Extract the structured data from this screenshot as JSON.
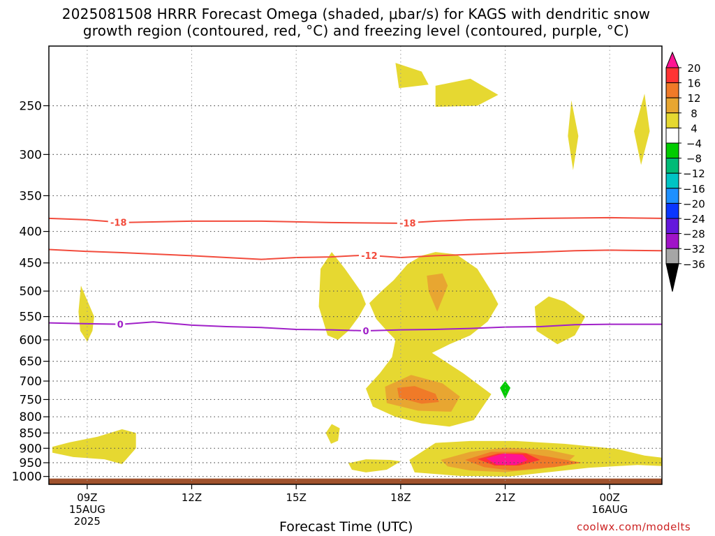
{
  "title_line1": "2025081508 HRRR Forecast Omega (shaded, μbar/s) for KAGS with dendritic snow",
  "title_line2": "growth region (contoured, red, °C) and freezing level (contoured, purple, °C)",
  "xlabel": "Forecast Time (UTC)",
  "credit": "coolwx.com/modelts",
  "chart_data": {
    "type": "heatmap",
    "title": "2025081508 HRRR Forecast Omega (shaded, μbar/s) for KAGS with dendritic snow growth region (contoured, red, °C) and freezing level (contoured, purple, °C)",
    "xlabel": "Forecast Time (UTC)",
    "ylabel": "",
    "x_range_hours": [
      7.9,
      25.5
    ],
    "y_axis": {
      "scale": "log",
      "inverted": true,
      "range_hPa": [
        1030,
        200
      ]
    },
    "y_ticks": [
      250,
      300,
      350,
      400,
      450,
      500,
      550,
      600,
      650,
      700,
      750,
      800,
      850,
      900,
      950,
      1000
    ],
    "x_ticks": [
      {
        "hour": 9,
        "label": [
          "09Z",
          "15AUG",
          "2025"
        ]
      },
      {
        "hour": 12,
        "label": [
          "12Z"
        ]
      },
      {
        "hour": 15,
        "label": [
          "15Z"
        ]
      },
      {
        "hour": 18,
        "label": [
          "18Z"
        ]
      },
      {
        "hour": 21,
        "label": [
          "21Z"
        ]
      },
      {
        "hour": 24,
        "label": [
          "00Z",
          "16AUG"
        ]
      }
    ],
    "grid": true,
    "colorbar": {
      "position": "right",
      "ticks": [
        "20",
        "16",
        "12",
        "8",
        "4",
        "−4",
        "−8",
        "−12",
        "−16",
        "−20",
        "−24",
        "−28",
        "−32",
        "−36"
      ],
      "colors": [
        "#ff1493",
        "#ff3333",
        "#f07a28",
        "#e8a631",
        "#e6d831",
        "#ffffff",
        "#00cc00",
        "#00bb77",
        "#00c4c4",
        "#1e90ff",
        "#0a36ff",
        "#6418dc",
        "#a014c8",
        "#a6a6a6",
        "#000000"
      ]
    },
    "terrain_color": "#a0522d",
    "contours": [
      {
        "name": "-18",
        "color": "#f24b3c",
        "label_positions_hours": [
          9.9,
          18.2
        ],
        "points": [
          [
            7.9,
            381
          ],
          [
            9,
            383
          ],
          [
            10,
            387
          ],
          [
            12,
            385
          ],
          [
            14,
            385
          ],
          [
            16,
            387
          ],
          [
            18,
            388
          ],
          [
            19,
            385
          ],
          [
            20,
            383
          ],
          [
            22,
            381
          ],
          [
            24,
            380
          ],
          [
            25.5,
            381
          ]
        ]
      },
      {
        "name": "-12",
        "color": "#f24b3c",
        "label_positions_hours": [
          17.1
        ],
        "points": [
          [
            7.9,
            428
          ],
          [
            9,
            431
          ],
          [
            10,
            433
          ],
          [
            12,
            438
          ],
          [
            14,
            444
          ],
          [
            15,
            441
          ],
          [
            16,
            440
          ],
          [
            17,
            437
          ],
          [
            18,
            441
          ],
          [
            19,
            438
          ],
          [
            20,
            436
          ],
          [
            21,
            434
          ],
          [
            22,
            432
          ],
          [
            23,
            430
          ],
          [
            24,
            429
          ],
          [
            25.5,
            430
          ]
        ]
      },
      {
        "name": "0",
        "color": "#a020c8",
        "label_positions_hours": [
          9.95,
          17.0
        ],
        "points": [
          [
            7.9,
            563
          ],
          [
            9,
            565
          ],
          [
            10,
            566
          ],
          [
            10.9,
            561
          ],
          [
            12,
            568
          ],
          [
            13,
            571
          ],
          [
            14,
            573
          ],
          [
            15,
            577
          ],
          [
            16,
            578
          ],
          [
            17,
            580
          ],
          [
            18,
            578
          ],
          [
            19,
            577
          ],
          [
            20,
            575
          ],
          [
            21,
            572
          ],
          [
            22,
            571
          ],
          [
            23,
            567
          ],
          [
            24,
            566
          ],
          [
            25.5,
            566
          ]
        ]
      }
    ],
    "omega_regions": [
      {
        "name": "4",
        "color": "#e6d831",
        "points": [
          [
            17.85,
            213
          ],
          [
            18.6,
            220
          ],
          [
            18.8,
            231
          ],
          [
            17.95,
            234
          ]
        ]
      },
      {
        "name": "4",
        "color": "#e6d831",
        "points": [
          [
            19,
            232
          ],
          [
            20.0,
            226
          ],
          [
            20.8,
            240
          ],
          [
            20.2,
            250
          ],
          [
            19,
            251
          ]
        ]
      },
      {
        "name": "4",
        "color": "#e6d831",
        "points": [
          [
            22.9,
            245
          ],
          [
            23.1,
            280
          ],
          [
            22.95,
            318
          ],
          [
            22.8,
            280
          ]
        ]
      },
      {
        "name": "4",
        "color": "#e6d831",
        "points": [
          [
            25,
            239
          ],
          [
            25.15,
            275
          ],
          [
            24.9,
            312
          ],
          [
            24.7,
            275
          ]
        ]
      },
      {
        "name": "4",
        "color": "#e6d831",
        "points": [
          [
            8.82,
            490
          ],
          [
            9.2,
            550
          ],
          [
            9.15,
            580
          ],
          [
            9.0,
            604
          ],
          [
            8.8,
            580
          ],
          [
            8.75,
            540
          ]
        ]
      },
      {
        "name": "4",
        "color": "#e6d831",
        "points": [
          [
            16.02,
            432
          ],
          [
            16.4,
            460
          ],
          [
            16.85,
            500
          ],
          [
            17.0,
            525
          ],
          [
            16.8,
            550
          ],
          [
            16.5,
            580
          ],
          [
            16.2,
            600
          ],
          [
            15.9,
            590
          ],
          [
            15.65,
            530
          ],
          [
            15.7,
            460
          ]
        ]
      },
      {
        "name": "4",
        "color": "#e6d831",
        "points": [
          [
            17.1,
            523
          ],
          [
            17.45,
            500
          ],
          [
            17.8,
            480
          ],
          [
            18.2,
            452
          ],
          [
            18.6,
            438
          ],
          [
            19.0,
            432
          ],
          [
            19.6,
            436
          ],
          [
            20.2,
            460
          ],
          [
            20.6,
            500
          ],
          [
            20.8,
            525
          ],
          [
            20.5,
            560
          ],
          [
            20.0,
            590
          ],
          [
            19.4,
            610
          ],
          [
            18.9,
            630
          ],
          [
            19.8,
            680
          ],
          [
            20.6,
            735
          ],
          [
            20.1,
            810
          ],
          [
            19.4,
            830
          ],
          [
            18.6,
            820
          ],
          [
            17.85,
            800
          ],
          [
            17.2,
            770
          ],
          [
            17.0,
            720
          ],
          [
            17.4,
            680
          ],
          [
            17.75,
            640
          ],
          [
            17.85,
            600
          ],
          [
            17.6,
            580
          ],
          [
            17.3,
            555
          ]
        ]
      },
      {
        "name": "8",
        "color": "#e8a631",
        "points": [
          [
            17.55,
            715
          ],
          [
            18.3,
            684
          ],
          [
            19.2,
            706
          ],
          [
            19.7,
            742
          ],
          [
            19.45,
            785
          ],
          [
            18.5,
            782
          ],
          [
            17.6,
            760
          ]
        ]
      },
      {
        "name": "12",
        "color": "#f07a28",
        "points": [
          [
            17.9,
            718
          ],
          [
            18.4,
            713
          ],
          [
            19.0,
            734
          ],
          [
            19.1,
            757
          ],
          [
            18.6,
            762
          ],
          [
            17.95,
            745
          ]
        ]
      },
      {
        "name": "8",
        "color": "#e8a631",
        "points": [
          [
            18.75,
            472
          ],
          [
            19.2,
            468
          ],
          [
            19.35,
            490
          ],
          [
            19.05,
            540
          ],
          [
            18.8,
            500
          ]
        ]
      },
      {
        "name": "4",
        "color": "#e6d831",
        "points": [
          [
            21.85,
            530
          ],
          [
            22.25,
            510
          ],
          [
            22.7,
            520
          ],
          [
            23.3,
            550
          ],
          [
            23.0,
            590
          ],
          [
            22.5,
            610
          ],
          [
            21.9,
            580
          ]
        ]
      },
      {
        "name": "4",
        "color": "#e6d831",
        "points": [
          [
            16.02,
            822
          ],
          [
            16.25,
            835
          ],
          [
            16.2,
            875
          ],
          [
            16.0,
            885
          ],
          [
            15.85,
            850
          ]
        ]
      },
      {
        "name": "4",
        "color": "#e6d831",
        "points": [
          [
            8.0,
            895
          ],
          [
            8.5,
            880
          ],
          [
            9.3,
            862
          ],
          [
            10.0,
            838
          ],
          [
            10.4,
            850
          ],
          [
            10.4,
            900
          ],
          [
            10.0,
            955
          ],
          [
            9.5,
            938
          ],
          [
            8.6,
            930
          ],
          [
            8.0,
            915
          ]
        ]
      },
      {
        "name": "4",
        "color": "#e6d831",
        "points": [
          [
            16.5,
            952
          ],
          [
            17,
            938
          ],
          [
            17.7,
            940
          ],
          [
            18.0,
            945
          ],
          [
            17.6,
            975
          ],
          [
            17.0,
            985
          ],
          [
            16.6,
            975
          ]
        ]
      },
      {
        "name": "4",
        "color": "#e6d831",
        "points": [
          [
            19.0,
            882
          ],
          [
            20.0,
            876
          ],
          [
            21.3,
            876
          ],
          [
            22.7,
            885
          ],
          [
            24.2,
            902
          ],
          [
            25.0,
            925
          ],
          [
            25.5,
            932
          ],
          [
            25.5,
            962
          ],
          [
            24.8,
            958
          ],
          [
            23.4,
            968
          ],
          [
            22.4,
            982
          ],
          [
            21.1,
            1000
          ],
          [
            19.7,
            998
          ],
          [
            18.4,
            985
          ],
          [
            18.25,
            940
          ]
        ]
      },
      {
        "name": "8",
        "color": "#e8a631",
        "points": [
          [
            19.15,
            940
          ],
          [
            20.0,
            912
          ],
          [
            21.0,
            898
          ],
          [
            22.2,
            905
          ],
          [
            23.0,
            925
          ],
          [
            22.7,
            958
          ],
          [
            22.0,
            972
          ],
          [
            21.0,
            984
          ],
          [
            20.0,
            978
          ],
          [
            19.35,
            963
          ]
        ]
      },
      {
        "name": "12",
        "color": "#f07a28",
        "points": [
          [
            19.85,
            940
          ],
          [
            20.6,
            912
          ],
          [
            21.4,
            912
          ],
          [
            22.3,
            930
          ],
          [
            23.2,
            950
          ],
          [
            22.4,
            966
          ],
          [
            21.2,
            978
          ],
          [
            20.4,
            966
          ]
        ]
      },
      {
        "name": "16",
        "color": "#ff3333",
        "points": [
          [
            20.2,
            937
          ],
          [
            20.8,
            918
          ],
          [
            21.6,
            917
          ],
          [
            22.0,
            940
          ],
          [
            21.4,
            960
          ],
          [
            20.7,
            960
          ]
        ]
      },
      {
        "name": "20",
        "color": "#ff1493",
        "points": [
          [
            20.45,
            935
          ],
          [
            20.95,
            918
          ],
          [
            21.5,
            922
          ],
          [
            21.65,
            940
          ],
          [
            21.3,
            958
          ],
          [
            20.75,
            957
          ]
        ]
      },
      {
        "name": "-4",
        "color": "#00cc00",
        "points": [
          [
            21.0,
            700
          ],
          [
            21.15,
            718
          ],
          [
            21.0,
            748
          ],
          [
            20.85,
            718
          ]
        ]
      }
    ]
  }
}
